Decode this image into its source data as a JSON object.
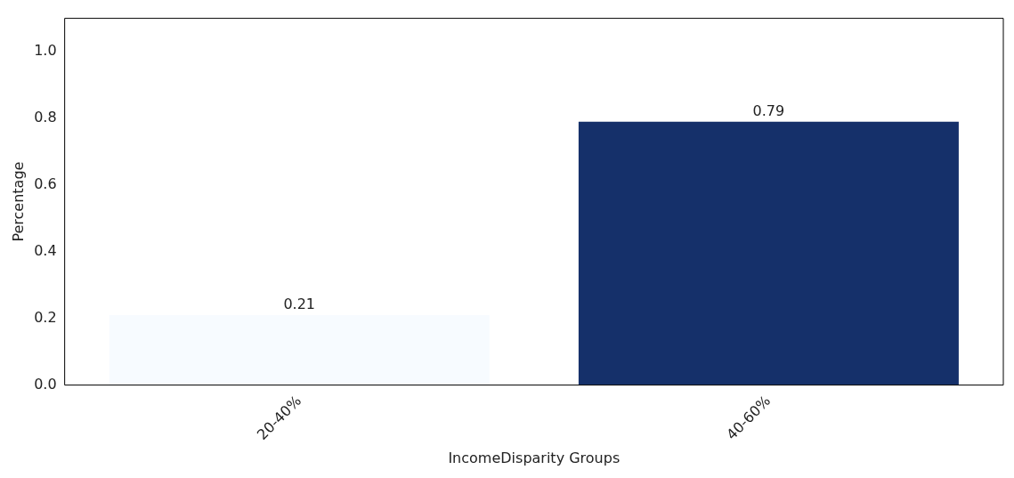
{
  "chart_data": {
    "type": "bar",
    "xlabel": "IncomeDisparity Groups",
    "ylabel": "Percentage",
    "categories": [
      "20-40%",
      "40-60%"
    ],
    "values": [
      0.21,
      0.79
    ],
    "colors": [
      "#f7fbff",
      "#15306a"
    ],
    "ylim": [
      0,
      1.1
    ],
    "yticks": [
      {
        "value": 0,
        "label": "0.0"
      },
      0.2,
      0.4,
      0.6,
      0.8,
      {
        "value": 1,
        "label": "1.0"
      }
    ],
    "data_labels": true,
    "grid": false,
    "legend": false
  }
}
